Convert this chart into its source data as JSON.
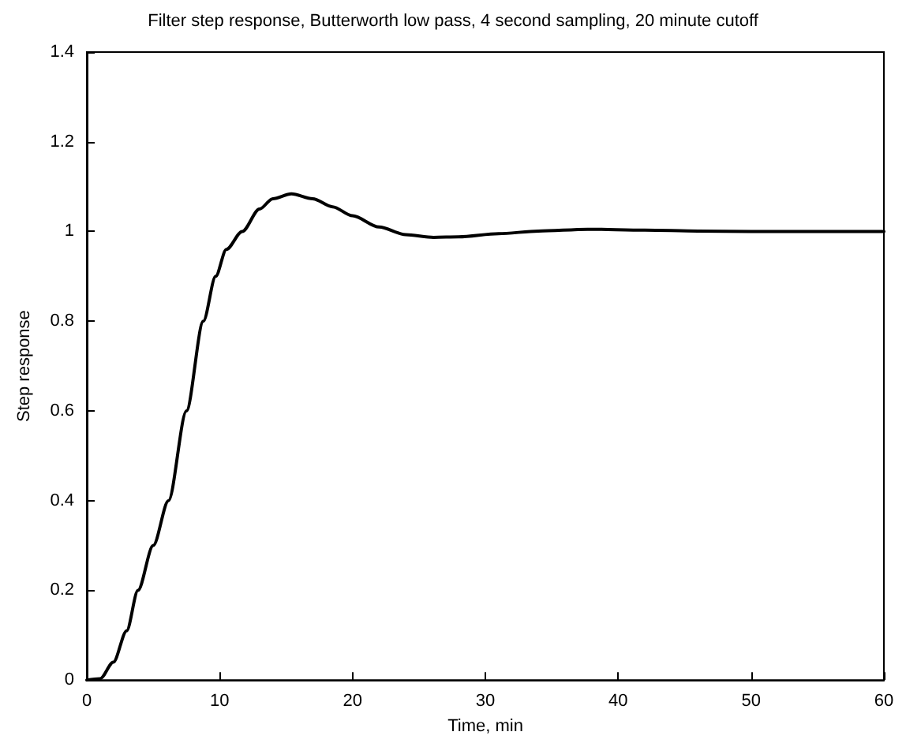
{
  "chart_data": {
    "type": "line",
    "title": "Filter step response, Butterworth low pass, 4 second sampling, 20 minute cutoff",
    "xlabel": "Time, min",
    "ylabel": "Step response",
    "x": [
      0,
      1,
      2,
      3,
      3.85,
      5,
      6.15,
      7.5,
      8.77,
      9.7,
      10.5,
      11.7,
      13,
      14,
      15.4,
      17,
      18.5,
      20,
      22,
      24,
      26.1,
      28,
      31,
      34,
      37.7,
      42,
      46,
      50,
      55,
      60
    ],
    "series": [
      {
        "color": "#000000",
        "values": [
          0,
          0.003,
          0.04,
          0.11,
          0.2,
          0.3,
          0.4,
          0.6,
          0.8,
          0.9,
          0.96,
          1.0,
          1.05,
          1.073,
          1.084,
          1.073,
          1.055,
          1.035,
          1.01,
          0.993,
          0.987,
          0.988,
          0.995,
          1.001,
          1.005,
          1.003,
          1.001,
          1.0,
          1.0,
          1.0
        ]
      }
    ],
    "xlim": [
      0,
      60
    ],
    "xticks": [
      0,
      10,
      20,
      30,
      40,
      50,
      60
    ],
    "ylim": [
      0,
      1.4
    ],
    "yticks": [
      0,
      0.2,
      0.4,
      0.6,
      0.8,
      1,
      1.2,
      1.4
    ],
    "grid": false,
    "marker": "none",
    "line_style": "solid"
  }
}
